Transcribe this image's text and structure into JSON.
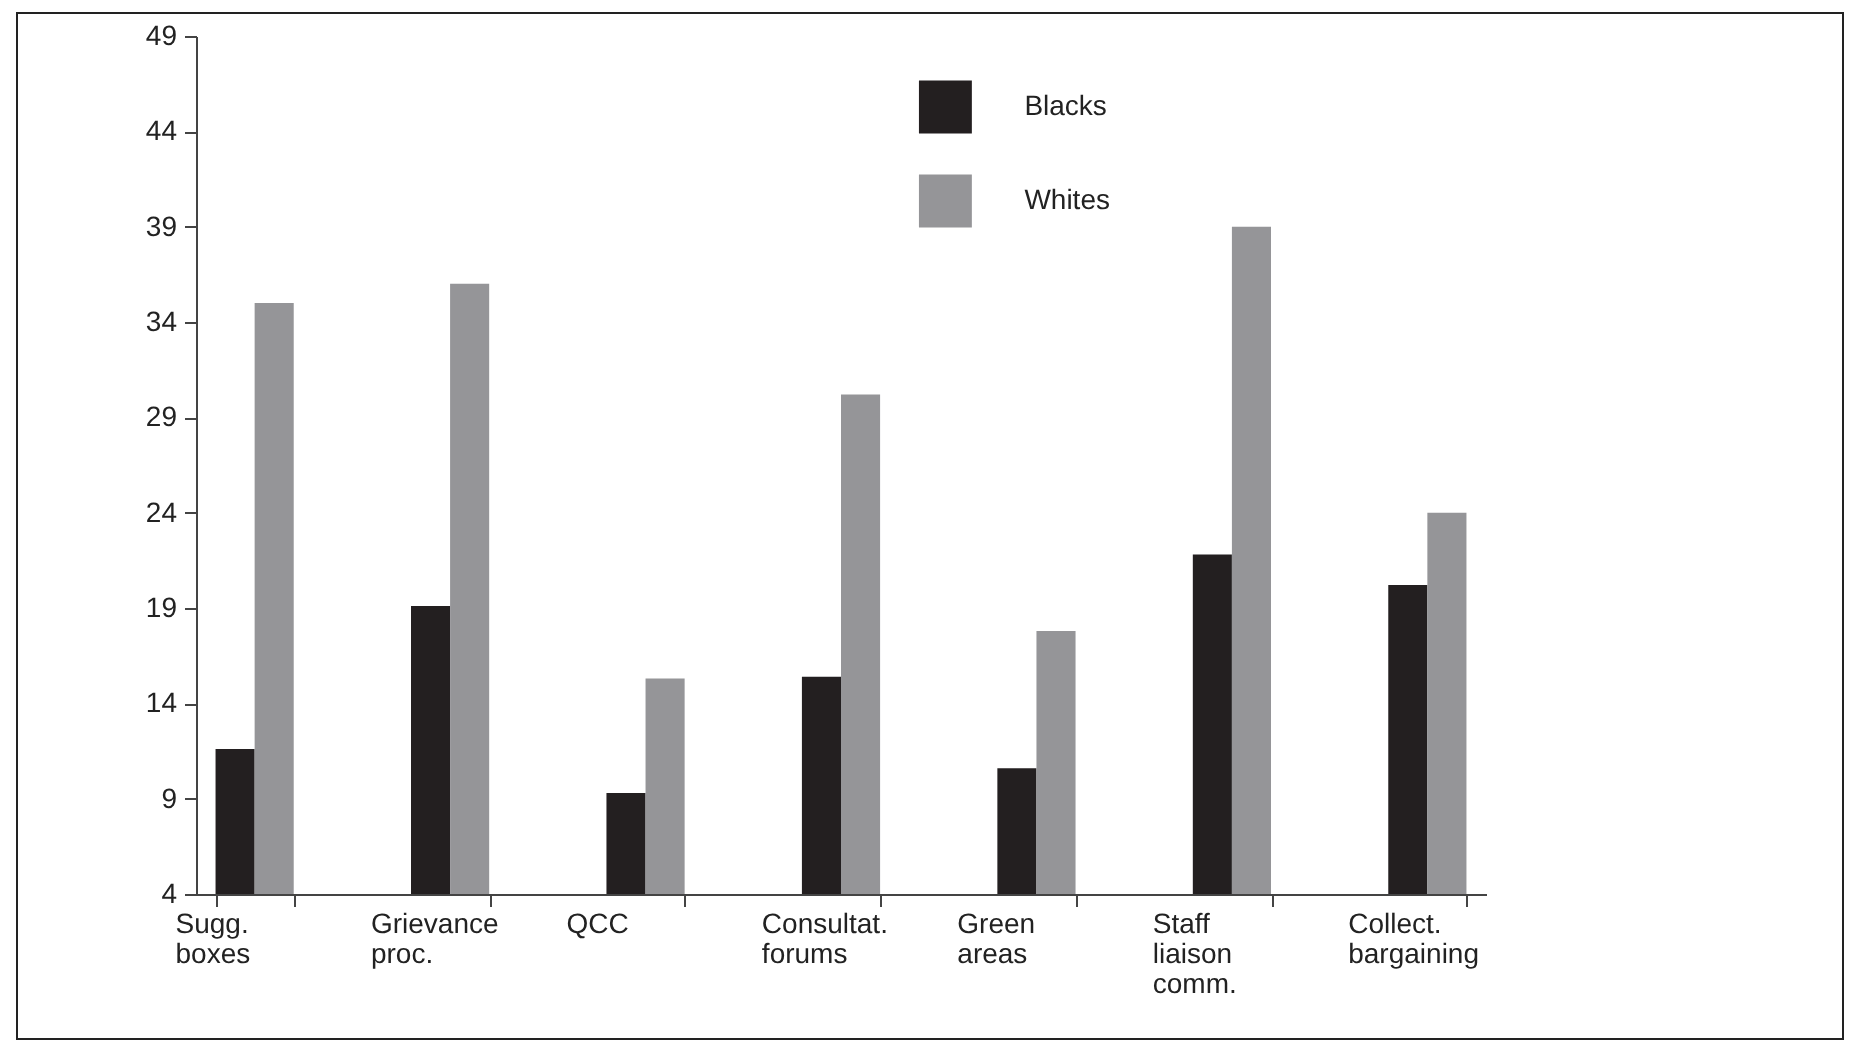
{
  "chart_data": {
    "type": "bar",
    "categories": [
      "Sugg. boxes",
      "Grievance proc.",
      "QCC",
      "Consultat. forums",
      "Green areas",
      "Staff liaison comm.",
      "Collect. bargaining"
    ],
    "series": [
      {
        "name": "Blacks",
        "color": "#231f20",
        "values": [
          11.6,
          19.1,
          9.3,
          15.4,
          10.6,
          21.8,
          20.2
        ]
      },
      {
        "name": "Whites",
        "color": "#959598",
        "values": [
          35.0,
          36.0,
          15.3,
          30.2,
          17.8,
          39.0,
          24.0
        ]
      }
    ],
    "ylim": [
      4,
      49
    ],
    "yticks": [
      4,
      9,
      14,
      19,
      24,
      29,
      34,
      39,
      44,
      49
    ],
    "grid": false,
    "legend": "top"
  }
}
